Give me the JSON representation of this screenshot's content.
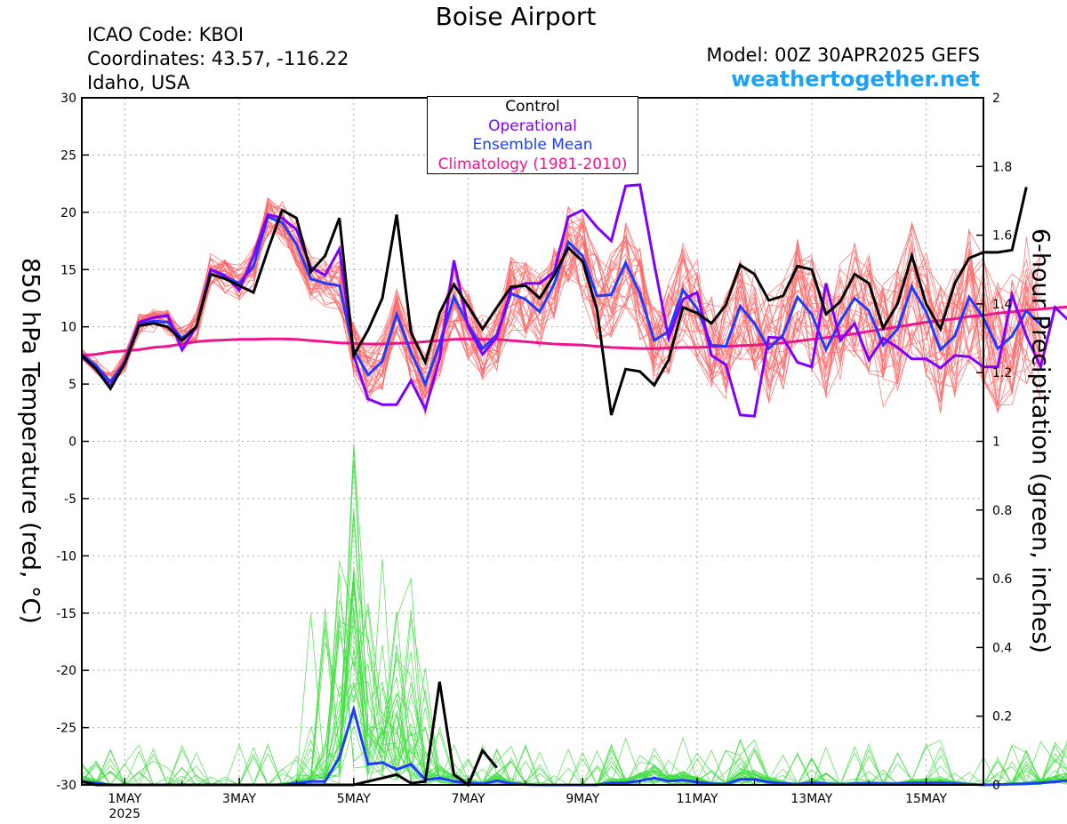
{
  "header": {
    "title": "Boise Airport",
    "icao": "ICAO Code: KBOI",
    "coordinates": "Coordinates: 43.57, -116.22",
    "region": "Idaho, USA",
    "model": "Model: 00Z 30APR2025 GEFS",
    "website": "weathertogether.net"
  },
  "legend": {
    "control": "Control",
    "operational": "Operational",
    "ensemble_mean": "Ensemble Mean",
    "climatology": "Climatology (1981-2010)"
  },
  "colors": {
    "control": "#000000",
    "operational": "#8000ff",
    "ensemble_mean": "#1e3cff",
    "climatology": "#f0148c",
    "members_temp": "#ff6666",
    "members_precip": "#44dd44",
    "website": "#1ea0f5"
  },
  "chart_data": {
    "type": "line",
    "ylabel_left": "850 hPa Temperature (red, °C)",
    "ylabel_right": "6-hour Precipitation (green, inches)",
    "ylim_left": [
      -30,
      30
    ],
    "ylim_right": [
      0,
      2
    ],
    "yticks_left": [
      "30",
      "25",
      "20",
      "15",
      "10",
      "5",
      "0",
      "-5",
      "-10",
      "-15",
      "-20",
      "-25",
      "-30"
    ],
    "yticks_right": [
      "2",
      "1.8",
      "1.6",
      "1.4",
      "1.2",
      "1",
      "0.8",
      "0.6",
      "0.4",
      "0.2",
      "0"
    ],
    "xticks": [
      {
        "day": 1,
        "label": "1MAY",
        "sub": "2025"
      },
      {
        "day": 3,
        "label": "3MAY"
      },
      {
        "day": 5,
        "label": "5MAY"
      },
      {
        "day": 7,
        "label": "7MAY"
      },
      {
        "day": 9,
        "label": "9MAY"
      },
      {
        "day": 11,
        "label": "11MAY"
      },
      {
        "day": 13,
        "label": "13MAY"
      },
      {
        "day": 15,
        "label": "15MAY"
      }
    ],
    "x_start_day": 0.25,
    "step_days": 0.25,
    "grid": true,
    "temperature": {
      "control": [
        7.5,
        6.3,
        4.6,
        6.8,
        10.1,
        10.3,
        10,
        8.8,
        10,
        14.6,
        14.2,
        13.6,
        13,
        16.7,
        20.2,
        19.5,
        14.8,
        16.2,
        19.5,
        7.5,
        9.7,
        12.5,
        19.8,
        9.5,
        6.9,
        11.2,
        13.7,
        11.8,
        9.8,
        11.7,
        13.5,
        13.6,
        12.5,
        14.5,
        16.9,
        15.7,
        11.5,
        2.3,
        6.3,
        6.1,
        4.9,
        7.1,
        11.7,
        11.2,
        10.3,
        11.9,
        15.4,
        14.6,
        12.3,
        12.7,
        15.3,
        15,
        11.1,
        12.2,
        14.6,
        13.8,
        9.9,
        12,
        16.2,
        12,
        9.8,
        13.8,
        16,
        16.5,
        16.5,
        16.7,
        22.2
      ],
      "operational": [
        7.4,
        6.3,
        4.8,
        7,
        10.4,
        10.8,
        11,
        8,
        10,
        15,
        14.5,
        13.2,
        16.2,
        19.8,
        19.5,
        18.5,
        15.2,
        14.5,
        16.8,
        7.5,
        3.7,
        3.2,
        3.2,
        5.3,
        2.8,
        7.2,
        15.8,
        10,
        7.6,
        9.1,
        13.3,
        13.8,
        13.8,
        14.8,
        19.6,
        20.2,
        18.7,
        17.5,
        22.3,
        22.4,
        15.5,
        9,
        12.4,
        13,
        7.5,
        6.7,
        2.3,
        2.2,
        9.1,
        9,
        6.9,
        6.5,
        13.8,
        8.8,
        10.3,
        7.1,
        9,
        8.2,
        7.2,
        7.2,
        6.4,
        7.5,
        7.4,
        6.5,
        6.5,
        12.8,
        9.2,
        6.5,
        11.7,
        10.5
      ],
      "ensemble_mean": [
        7.6,
        6.6,
        5.2,
        6.9,
        10.2,
        10.5,
        10.4,
        9,
        10,
        15,
        14.4,
        13.8,
        15.3,
        19.6,
        19.1,
        17.2,
        14.2,
        13.8,
        13.6,
        8,
        5.8,
        7,
        11.1,
        7.8,
        5,
        8.5,
        12.6,
        10.2,
        8.1,
        9.3,
        12.9,
        12.4,
        11.3,
        13.7,
        17.4,
        16.2,
        12.7,
        12.8,
        15.6,
        12.9,
        8.8,
        9.6,
        13.2,
        11.6,
        8.4,
        8.3,
        11.8,
        10.3,
        8.1,
        9.3,
        12.6,
        11.1,
        8,
        10.5,
        12.5,
        11.4,
        8.4,
        9.8,
        13.5,
        11.3,
        8,
        9.2,
        12.6,
        10.8,
        8.1,
        9.2,
        11.4,
        10.2
      ],
      "climatology": [
        7.5,
        7.6,
        7.8,
        7.9,
        8,
        8.2,
        8.3,
        8.5,
        8.7,
        8.8,
        8.85,
        8.9,
        8.9,
        8.95,
        8.95,
        8.9,
        8.8,
        8.7,
        8.6,
        8.55,
        8.5,
        8.5,
        8.55,
        8.6,
        8.7,
        8.8,
        8.9,
        8.95,
        8.9,
        8.9,
        8.8,
        8.7,
        8.6,
        8.5,
        8.45,
        8.4,
        8.3,
        8.2,
        8.15,
        8.1,
        8.1,
        8.15,
        8.2,
        8.2,
        8.25,
        8.3,
        8.35,
        8.4,
        8.5,
        8.6,
        8.75,
        8.9,
        9.05,
        9.2,
        9.4,
        9.6,
        9.8,
        10,
        10.2,
        10.4,
        10.55,
        10.7,
        10.9,
        11,
        11.2,
        11.3,
        11.45,
        11.55,
        11.65,
        11.75
      ],
      "member_count": 30
    },
    "precipitation": {
      "control": [
        0.01,
        0,
        0,
        0,
        0,
        0,
        0,
        0,
        0,
        0,
        0,
        0,
        0,
        0,
        0,
        0,
        0,
        0,
        0,
        0,
        0.01,
        0.02,
        0.03,
        0.005,
        0.01,
        0.3,
        0.03,
        0,
        0.1,
        0.05
      ],
      "ensemble_mean": [
        0.01,
        0.005,
        0,
        0,
        0,
        0,
        0,
        0,
        0,
        0,
        0,
        0,
        0,
        0,
        0,
        0.005,
        0.01,
        0.01,
        0.08,
        0.22,
        0.06,
        0.065,
        0.045,
        0.06,
        0.015,
        0.02,
        0.01,
        0.005,
        0.003,
        0.012,
        0.004,
        0.001,
        0,
        0,
        0,
        0,
        0,
        0.006,
        0.006,
        0.012,
        0.02,
        0.011,
        0.014,
        0.008,
        0.003,
        0.002,
        0.016,
        0.016,
        0.008,
        0.004,
        0.002,
        0.006,
        0.003,
        0.002,
        0.003,
        0.004,
        0.003,
        0.003,
        0.006,
        0.006,
        0.006,
        0.004,
        0.002,
        0,
        0.001,
        0.002,
        0.003,
        0.006,
        0.009,
        0.013,
        0.01,
        0.006
      ],
      "member_count": 30
    }
  }
}
